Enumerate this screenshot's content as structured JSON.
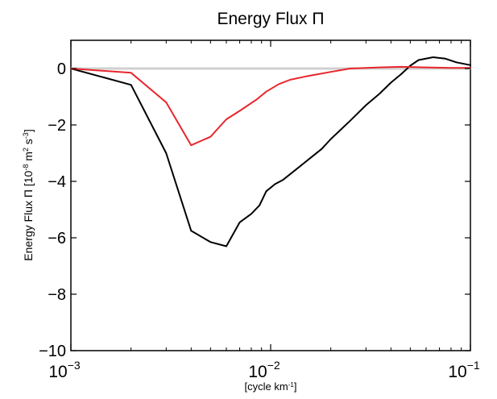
{
  "chart_data": {
    "type": "line",
    "title": "Energy Flux Π",
    "xlabel": "[cycle km",
    "xlabel_sup": "-1",
    "xlabel_end": "]",
    "ylabel": "Energy Flux Π [10",
    "ylabel_sup1": "-8",
    "ylabel_mid": " m",
    "ylabel_sup2": "2",
    "ylabel_mid2": " s",
    "ylabel_sup3": "-3",
    "ylabel_end": "]",
    "xscale": "log",
    "xlim": [
      0.001,
      0.1
    ],
    "ylim": [
      -10,
      1
    ],
    "yticks": [
      {
        "value": 0,
        "label": "0"
      },
      {
        "value": -2,
        "label": "−2"
      },
      {
        "value": -4,
        "label": "−4"
      },
      {
        "value": -6,
        "label": "−6"
      },
      {
        "value": -8,
        "label": "−8"
      },
      {
        "value": -10,
        "label": "−10"
      }
    ],
    "xticks": [
      {
        "value": 0.001,
        "base": "10",
        "exp": "−3"
      },
      {
        "value": 0.01,
        "base": "10",
        "exp": "−2"
      },
      {
        "value": 0.1,
        "base": "10",
        "exp": "−1"
      }
    ],
    "zero_line_color": "#d0d0d0",
    "series": [
      {
        "color": "#000000",
        "points": [
          [
            0.001,
            0.0
          ],
          [
            0.002,
            -0.58
          ],
          [
            0.003,
            -3.0
          ],
          [
            0.004,
            -5.75
          ],
          [
            0.005,
            -6.15
          ],
          [
            0.006,
            -6.3
          ],
          [
            0.007,
            -5.45
          ],
          [
            0.008,
            -5.15
          ],
          [
            0.0088,
            -4.85
          ],
          [
            0.0095,
            -4.35
          ],
          [
            0.0105,
            -4.1
          ],
          [
            0.0115,
            -3.95
          ],
          [
            0.013,
            -3.65
          ],
          [
            0.015,
            -3.3
          ],
          [
            0.018,
            -2.85
          ],
          [
            0.02,
            -2.5
          ],
          [
            0.025,
            -1.85
          ],
          [
            0.03,
            -1.3
          ],
          [
            0.035,
            -0.9
          ],
          [
            0.04,
            -0.5
          ],
          [
            0.045,
            -0.2
          ],
          [
            0.05,
            0.1
          ],
          [
            0.055,
            0.3
          ],
          [
            0.065,
            0.4
          ],
          [
            0.075,
            0.35
          ],
          [
            0.085,
            0.22
          ],
          [
            0.1,
            0.12
          ]
        ]
      },
      {
        "color": "#e8262c",
        "points": [
          [
            0.001,
            0.0
          ],
          [
            0.002,
            -0.15
          ],
          [
            0.003,
            -1.2
          ],
          [
            0.004,
            -2.72
          ],
          [
            0.005,
            -2.42
          ],
          [
            0.006,
            -1.8
          ],
          [
            0.007,
            -1.5
          ],
          [
            0.0085,
            -1.1
          ],
          [
            0.0095,
            -0.82
          ],
          [
            0.011,
            -0.55
          ],
          [
            0.0125,
            -0.4
          ],
          [
            0.015,
            -0.28
          ],
          [
            0.02,
            -0.12
          ],
          [
            0.025,
            0.0
          ],
          [
            0.035,
            0.04
          ],
          [
            0.045,
            0.06
          ],
          [
            0.06,
            0.04
          ],
          [
            0.08,
            0.02
          ],
          [
            0.1,
            0.02
          ]
        ]
      }
    ]
  }
}
